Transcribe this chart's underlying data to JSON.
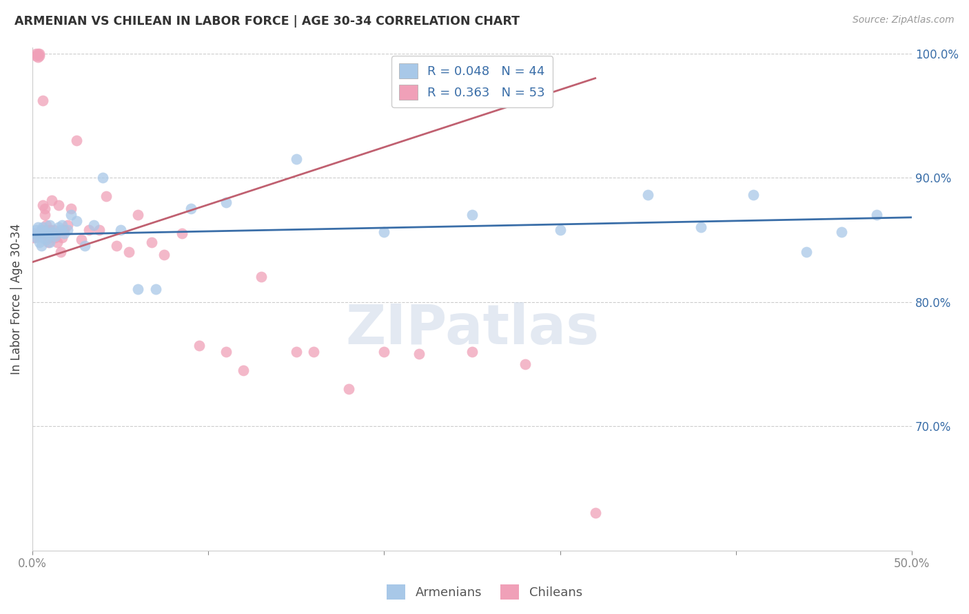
{
  "title": "ARMENIAN VS CHILEAN IN LABOR FORCE | AGE 30-34 CORRELATION CHART",
  "source": "Source: ZipAtlas.com",
  "ylabel": "In Labor Force | Age 30-34",
  "xlim": [
    0.0,
    0.5
  ],
  "ylim": [
    0.6,
    1.005
  ],
  "blue_color": "#a8c8e8",
  "pink_color": "#f0a0b8",
  "blue_line_color": "#3a6ea8",
  "pink_line_color": "#c06070",
  "arm_x": [
    0.001,
    0.002,
    0.002,
    0.003,
    0.003,
    0.004,
    0.004,
    0.005,
    0.005,
    0.006,
    0.006,
    0.007,
    0.008,
    0.009,
    0.01,
    0.01,
    0.011,
    0.012,
    0.013,
    0.015,
    0.016,
    0.017,
    0.018,
    0.02,
    0.022,
    0.025,
    0.03,
    0.035,
    0.04,
    0.05,
    0.06,
    0.07,
    0.09,
    0.11,
    0.15,
    0.2,
    0.25,
    0.3,
    0.35,
    0.38,
    0.41,
    0.44,
    0.46,
    0.48
  ],
  "arm_y": [
    0.855,
    0.858,
    0.852,
    0.86,
    0.854,
    0.855,
    0.848,
    0.858,
    0.845,
    0.86,
    0.852,
    0.856,
    0.85,
    0.855,
    0.848,
    0.862,
    0.856,
    0.855,
    0.853,
    0.86,
    0.858,
    0.862,
    0.855,
    0.858,
    0.87,
    0.865,
    0.845,
    0.862,
    0.9,
    0.858,
    0.81,
    0.81,
    0.875,
    0.88,
    0.915,
    0.856,
    0.87,
    0.858,
    0.886,
    0.86,
    0.886,
    0.84,
    0.856,
    0.87
  ],
  "chi_x": [
    0.001,
    0.001,
    0.002,
    0.002,
    0.003,
    0.003,
    0.004,
    0.004,
    0.005,
    0.005,
    0.006,
    0.006,
    0.007,
    0.007,
    0.008,
    0.008,
    0.009,
    0.009,
    0.01,
    0.01,
    0.011,
    0.012,
    0.013,
    0.014,
    0.015,
    0.016,
    0.017,
    0.018,
    0.02,
    0.022,
    0.025,
    0.028,
    0.032,
    0.038,
    0.042,
    0.048,
    0.055,
    0.06,
    0.068,
    0.075,
    0.085,
    0.095,
    0.11,
    0.12,
    0.13,
    0.15,
    0.16,
    0.18,
    0.2,
    0.22,
    0.25,
    0.28,
    0.32
  ],
  "chi_y": [
    0.855,
    0.852,
    1.0,
    0.998,
    1.0,
    0.997,
    1.0,
    0.998,
    0.855,
    0.858,
    0.962,
    0.878,
    0.875,
    0.87,
    0.862,
    0.858,
    0.852,
    0.848,
    0.852,
    0.858,
    0.882,
    0.858,
    0.852,
    0.848,
    0.878,
    0.84,
    0.852,
    0.858,
    0.862,
    0.875,
    0.93,
    0.85,
    0.858,
    0.858,
    0.885,
    0.845,
    0.84,
    0.87,
    0.848,
    0.838,
    0.855,
    0.765,
    0.76,
    0.745,
    0.82,
    0.76,
    0.76,
    0.73,
    0.76,
    0.758,
    0.76,
    0.75,
    0.63
  ],
  "arm_trend_x": [
    0.0,
    0.5
  ],
  "arm_trend_y": [
    0.854,
    0.868
  ],
  "chi_trend_x": [
    0.0,
    0.32
  ],
  "chi_trend_y": [
    0.832,
    0.98
  ]
}
